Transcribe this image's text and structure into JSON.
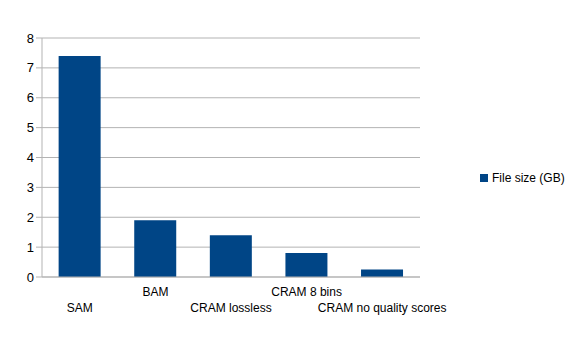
{
  "chart_data": {
    "type": "bar",
    "categories": [
      "SAM",
      "BAM",
      "CRAM lossless",
      "CRAM 8 bins",
      "CRAM no quality scores"
    ],
    "series": [
      {
        "name": "File size (GB)",
        "color": "#004586",
        "values": [
          7.4,
          1.9,
          1.4,
          0.8,
          0.25
        ]
      }
    ],
    "ylim": [
      0,
      8
    ],
    "yticks": [
      0,
      1,
      2,
      3,
      4,
      5,
      6,
      7,
      8
    ],
    "grid": true,
    "legend": "right"
  }
}
